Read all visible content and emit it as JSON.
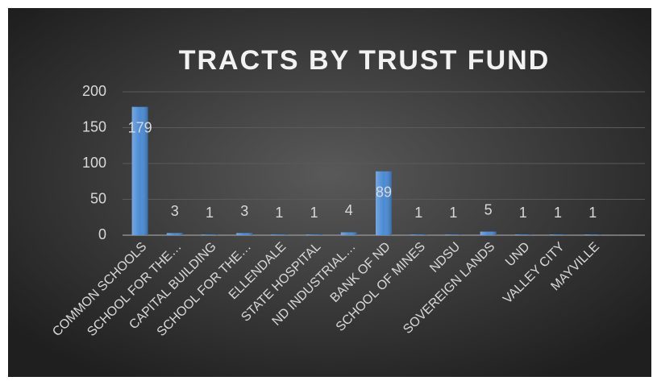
{
  "chart_data": {
    "type": "bar",
    "title": "TRACTS BY TRUST FUND",
    "categories": [
      "COMMON SCHOOLS",
      "SCHOOL FOR THE…",
      "CAPITAL BUILDING",
      "SCHOOL FOR THE…",
      "ELLENDALE",
      "STATE HOSPITAL",
      "ND INDUSTRIAL…",
      "BANK OF ND",
      "SCHOOL OF MINES",
      "NDSU",
      "SOVEREIGN LANDS",
      "UND",
      "VALLEY CITY",
      "MAYVILLE",
      null
    ],
    "values": [
      179,
      3,
      1,
      3,
      1,
      1,
      4,
      89,
      1,
      1,
      5,
      1,
      1,
      1,
      null
    ],
    "color": "#4a8ad4",
    "ylim": [
      0,
      200
    ],
    "yticks": [
      0,
      50,
      100,
      150,
      200
    ],
    "grid": true
  }
}
